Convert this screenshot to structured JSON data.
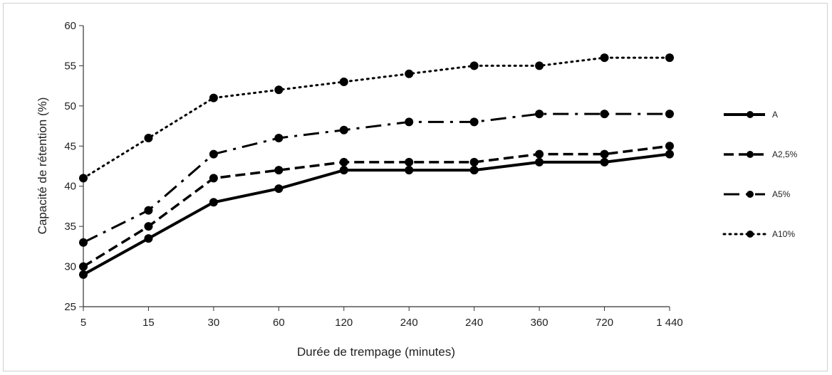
{
  "chart_data": {
    "type": "line",
    "categories": [
      "5",
      "15",
      "30",
      "60",
      "120",
      "240",
      "240",
      "360",
      "720",
      "1 440"
    ],
    "xlabel": "Durée de trempage (minutes)",
    "ylabel": "Capacité de rétention (%)",
    "ylim": [
      25,
      60
    ],
    "yticks": [
      25,
      30,
      35,
      40,
      45,
      50,
      55,
      60
    ],
    "grid": false,
    "legend_position": "right",
    "series": [
      {
        "name": "A",
        "style": "solid",
        "values": [
          29,
          33.5,
          38,
          39.7,
          42,
          42,
          42,
          43,
          43,
          44
        ]
      },
      {
        "name": "A2,5%",
        "style": "dashed",
        "values": [
          30,
          35,
          41,
          42,
          43,
          43,
          43,
          44,
          44,
          45
        ]
      },
      {
        "name": "A5%",
        "style": "dashdot",
        "values": [
          33,
          37,
          44,
          46,
          47,
          48,
          48,
          49,
          49,
          49
        ]
      },
      {
        "name": "A10%",
        "style": "dotted",
        "values": [
          41,
          46,
          51,
          52,
          53,
          54,
          55,
          55,
          56,
          56
        ]
      }
    ],
    "colors": {
      "line": "#000000",
      "axis": "#333333"
    }
  }
}
